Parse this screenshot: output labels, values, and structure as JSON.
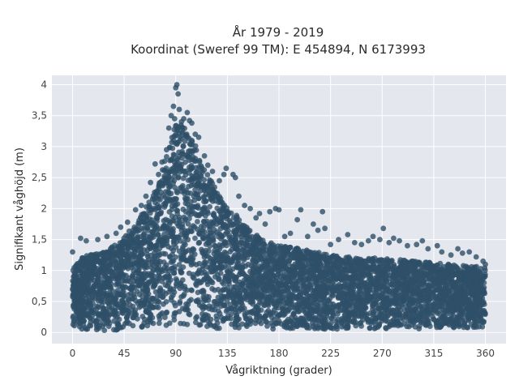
{
  "chart_data": {
    "type": "scatter",
    "title_line1": "År 1979 - 2019",
    "title_line2": "Koordinat (Sweref 99 TM): E 454894, N 6173993",
    "xlabel": "Vågriktning (grader)",
    "ylabel": "Signifikant våghöjd (m)",
    "xlim": [
      -18,
      378
    ],
    "ylim": [
      -0.18,
      4.15
    ],
    "xticks": [
      0,
      45,
      90,
      135,
      180,
      225,
      270,
      315,
      360
    ],
    "xtick_labels": [
      "0",
      "45",
      "90",
      "135",
      "180",
      "225",
      "270",
      "315",
      "360"
    ],
    "yticks": [
      0,
      0.5,
      1,
      1.5,
      2,
      2.5,
      3,
      3.5,
      4
    ],
    "ytick_labels": [
      "0",
      "0,5",
      "1",
      "1,5",
      "2",
      "2,5",
      "3",
      "3,5",
      "4"
    ],
    "grid": true,
    "background": "#e5e7ef",
    "marker_color": "#2e5068",
    "envelope": {
      "x": [
        0,
        5,
        15,
        25,
        35,
        45,
        55,
        65,
        75,
        82,
        88,
        92,
        98,
        105,
        115,
        125,
        135,
        150,
        165,
        180,
        200,
        225,
        250,
        270,
        300,
        330,
        360
      ],
      "upper": [
        1.0,
        1.2,
        1.25,
        1.3,
        1.4,
        1.55,
        1.75,
        2.05,
        2.4,
        2.9,
        3.3,
        3.4,
        3.3,
        3.1,
        2.7,
        2.3,
        2.05,
        1.75,
        1.5,
        1.4,
        1.35,
        1.25,
        1.2,
        1.2,
        1.15,
        1.1,
        1.05
      ],
      "lower": [
        0.08,
        0.05,
        0.04,
        0.03,
        0.03,
        0.04,
        0.05,
        0.06,
        0.08,
        0.1,
        0.1,
        0.1,
        0.09,
        0.08,
        0.07,
        0.06,
        0.06,
        0.06,
        0.05,
        0.05,
        0.05,
        0.05,
        0.06,
        0.06,
        0.06,
        0.06,
        0.08
      ]
    },
    "outliers": [
      {
        "x": 0,
        "y": 1.3
      },
      {
        "x": 7,
        "y": 1.52
      },
      {
        "x": 12,
        "y": 1.48
      },
      {
        "x": 22,
        "y": 1.5
      },
      {
        "x": 30,
        "y": 1.55
      },
      {
        "x": 38,
        "y": 1.6
      },
      {
        "x": 42,
        "y": 1.7
      },
      {
        "x": 48,
        "y": 1.78
      },
      {
        "x": 55,
        "y": 1.98
      },
      {
        "x": 60,
        "y": 2.05
      },
      {
        "x": 64,
        "y": 2.2
      },
      {
        "x": 68,
        "y": 2.42
      },
      {
        "x": 72,
        "y": 2.72
      },
      {
        "x": 75,
        "y": 2.55
      },
      {
        "x": 78,
        "y": 2.75
      },
      {
        "x": 82,
        "y": 2.95
      },
      {
        "x": 84,
        "y": 3.3
      },
      {
        "x": 86,
        "y": 3.5
      },
      {
        "x": 88,
        "y": 3.65
      },
      {
        "x": 89,
        "y": 3.45
      },
      {
        "x": 90,
        "y": 3.95
      },
      {
        "x": 91,
        "y": 4.0
      },
      {
        "x": 92,
        "y": 3.85
      },
      {
        "x": 93,
        "y": 3.6
      },
      {
        "x": 95,
        "y": 3.4
      },
      {
        "x": 97,
        "y": 3.45
      },
      {
        "x": 100,
        "y": 3.55
      },
      {
        "x": 102,
        "y": 3.42
      },
      {
        "x": 104,
        "y": 3.38
      },
      {
        "x": 107,
        "y": 3.2
      },
      {
        "x": 110,
        "y": 3.15
      },
      {
        "x": 115,
        "y": 2.85
      },
      {
        "x": 118,
        "y": 2.7
      },
      {
        "x": 122,
        "y": 2.6
      },
      {
        "x": 128,
        "y": 2.45
      },
      {
        "x": 132,
        "y": 2.55
      },
      {
        "x": 134,
        "y": 2.65
      },
      {
        "x": 140,
        "y": 2.55
      },
      {
        "x": 142,
        "y": 2.5
      },
      {
        "x": 145,
        "y": 2.2
      },
      {
        "x": 150,
        "y": 2.05
      },
      {
        "x": 155,
        "y": 2.0
      },
      {
        "x": 160,
        "y": 1.85
      },
      {
        "x": 163,
        "y": 1.92
      },
      {
        "x": 168,
        "y": 1.75
      },
      {
        "x": 172,
        "y": 1.95
      },
      {
        "x": 177,
        "y": 2.0
      },
      {
        "x": 180,
        "y": 1.98
      },
      {
        "x": 185,
        "y": 1.55
      },
      {
        "x": 190,
        "y": 1.6
      },
      {
        "x": 196,
        "y": 1.82
      },
      {
        "x": 199,
        "y": 1.98
      },
      {
        "x": 205,
        "y": 1.55
      },
      {
        "x": 210,
        "y": 1.75
      },
      {
        "x": 214,
        "y": 1.65
      },
      {
        "x": 218,
        "y": 1.95
      },
      {
        "x": 220,
        "y": 1.68
      },
      {
        "x": 225,
        "y": 1.42
      },
      {
        "x": 232,
        "y": 1.5
      },
      {
        "x": 240,
        "y": 1.58
      },
      {
        "x": 246,
        "y": 1.45
      },
      {
        "x": 252,
        "y": 1.42
      },
      {
        "x": 258,
        "y": 1.48
      },
      {
        "x": 262,
        "y": 1.55
      },
      {
        "x": 268,
        "y": 1.5
      },
      {
        "x": 271,
        "y": 1.68
      },
      {
        "x": 276,
        "y": 1.45
      },
      {
        "x": 280,
        "y": 1.52
      },
      {
        "x": 285,
        "y": 1.48
      },
      {
        "x": 292,
        "y": 1.4
      },
      {
        "x": 300,
        "y": 1.42
      },
      {
        "x": 305,
        "y": 1.48
      },
      {
        "x": 310,
        "y": 1.35
      },
      {
        "x": 318,
        "y": 1.4
      },
      {
        "x": 322,
        "y": 1.3
      },
      {
        "x": 330,
        "y": 1.25
      },
      {
        "x": 336,
        "y": 1.35
      },
      {
        "x": 340,
        "y": 1.28
      },
      {
        "x": 346,
        "y": 1.3
      },
      {
        "x": 352,
        "y": 1.22
      },
      {
        "x": 358,
        "y": 1.15
      },
      {
        "x": 360,
        "y": 1.1
      }
    ]
  }
}
